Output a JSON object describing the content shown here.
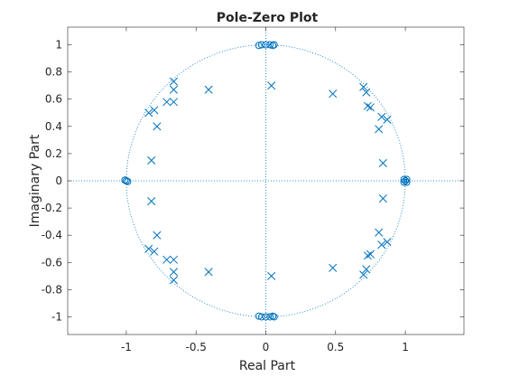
{
  "chart_data": {
    "type": "scatter",
    "title": "Pole-Zero Plot",
    "xlabel": "Real Part",
    "ylabel": "Imaginary Part",
    "xlim": [
      -1.42,
      1.42
    ],
    "ylim": [
      -1.13,
      1.13
    ],
    "xticks": [
      -1,
      -0.5,
      0,
      0.5,
      1
    ],
    "xtick_labels": [
      "-1",
      "-0.5",
      "0",
      "0.5",
      "1"
    ],
    "yticks": [
      -1,
      -0.8,
      -0.6,
      -0.4,
      -0.2,
      0,
      0.2,
      0.4,
      0.6,
      0.8,
      1
    ],
    "ytick_labels": [
      "-1",
      "-0.8",
      "-0.6",
      "-0.4",
      "-0.2",
      "0",
      "0.2",
      "0.4",
      "0.6",
      "0.8",
      "1"
    ],
    "grid": false,
    "unit_circle": true,
    "color": "#0072bd",
    "zeros": [
      [
        0.0,
        1.0
      ],
      [
        0.03,
        1.0
      ],
      [
        0.06,
        1.0
      ],
      [
        -0.03,
        1.0
      ],
      [
        -0.05,
        0.995
      ],
      [
        0.05,
        0.995
      ],
      [
        1.0,
        0.0
      ],
      [
        0.99,
        0.01
      ],
      [
        1.01,
        -0.01
      ],
      [
        0.99,
        -0.01
      ],
      [
        1.01,
        0.01
      ],
      [
        -1.0,
        0.0
      ],
      [
        -1.01,
        0.005
      ],
      [
        -0.99,
        -0.005
      ],
      [
        0.0,
        -1.0
      ],
      [
        0.03,
        -1.0
      ],
      [
        0.06,
        -1.0
      ],
      [
        -0.03,
        -1.0
      ],
      [
        -0.05,
        -0.995
      ],
      [
        0.05,
        -0.995
      ]
    ],
    "poles": [
      [
        0.04,
        0.7
      ],
      [
        0.04,
        -0.7
      ],
      [
        -0.41,
        0.67
      ],
      [
        -0.41,
        -0.67
      ],
      [
        0.48,
        0.64
      ],
      [
        0.48,
        -0.64
      ],
      [
        -0.66,
        0.73
      ],
      [
        -0.66,
        0.67
      ],
      [
        -0.71,
        0.58
      ],
      [
        -0.66,
        0.58
      ],
      [
        -0.84,
        0.5
      ],
      [
        -0.8,
        0.52
      ],
      [
        -0.78,
        0.4
      ],
      [
        -0.82,
        0.15
      ],
      [
        -0.66,
        -0.73
      ],
      [
        -0.66,
        -0.67
      ],
      [
        -0.71,
        -0.58
      ],
      [
        -0.66,
        -0.58
      ],
      [
        -0.84,
        -0.5
      ],
      [
        -0.8,
        -0.52
      ],
      [
        -0.78,
        -0.4
      ],
      [
        -0.82,
        -0.15
      ],
      [
        0.7,
        0.69
      ],
      [
        0.72,
        0.65
      ],
      [
        0.73,
        0.55
      ],
      [
        0.75,
        0.54
      ],
      [
        0.83,
        0.47
      ],
      [
        0.87,
        0.45
      ],
      [
        0.81,
        0.38
      ],
      [
        0.84,
        0.13
      ],
      [
        0.7,
        -0.69
      ],
      [
        0.72,
        -0.65
      ],
      [
        0.73,
        -0.55
      ],
      [
        0.75,
        -0.54
      ],
      [
        0.83,
        -0.47
      ],
      [
        0.87,
        -0.45
      ],
      [
        0.81,
        -0.38
      ],
      [
        0.84,
        -0.13
      ]
    ]
  }
}
